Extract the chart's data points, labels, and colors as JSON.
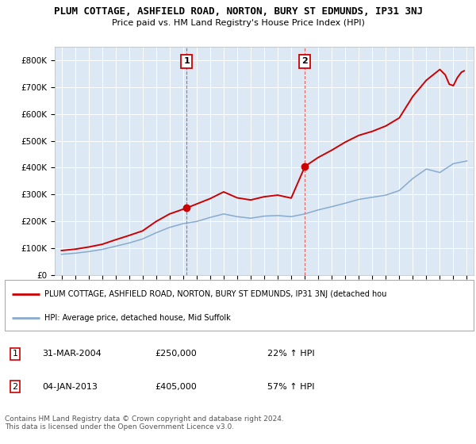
{
  "title": "PLUM COTTAGE, ASHFIELD ROAD, NORTON, BURY ST EDMUNDS, IP31 3NJ",
  "subtitle": "Price paid vs. HM Land Registry's House Price Index (HPI)",
  "plot_bg_color": "#dde8f5",
  "ylim": [
    0,
    850000
  ],
  "yticks": [
    0,
    100000,
    200000,
    300000,
    400000,
    500000,
    600000,
    700000,
    800000
  ],
  "ytick_labels": [
    "£0",
    "£100K",
    "£200K",
    "£300K",
    "£400K",
    "£500K",
    "£600K",
    "£700K",
    "£800K"
  ],
  "purchase1_year": 2004.25,
  "purchase1_value": 250000,
  "purchase2_year": 2013.02,
  "purchase2_value": 405000,
  "legend_line1": "PLUM COTTAGE, ASHFIELD ROAD, NORTON, BURY ST EDMUNDS, IP31 3NJ (detached hou",
  "legend_line2": "HPI: Average price, detached house, Mid Suffolk",
  "annotation1_label": "1",
  "annotation1_date": "31-MAR-2004",
  "annotation1_price": "£250,000",
  "annotation1_hpi": "22% ↑ HPI",
  "annotation2_label": "2",
  "annotation2_date": "04-JAN-2013",
  "annotation2_price": "£405,000",
  "annotation2_hpi": "57% ↑ HPI",
  "footer": "Contains HM Land Registry data © Crown copyright and database right 2024.\nThis data is licensed under the Open Government Licence v3.0.",
  "red_color": "#cc0000",
  "blue_color": "#88aacc",
  "marker_color": "#cc0000",
  "years_hpi": [
    1995,
    1996,
    1997,
    1998,
    1999,
    2000,
    2001,
    2002,
    2003,
    2004,
    2005,
    2006,
    2007,
    2008,
    2009,
    2010,
    2011,
    2012,
    2013,
    2014,
    2015,
    2016,
    2017,
    2018,
    2019,
    2020,
    2021,
    2022,
    2023,
    2024,
    2025
  ],
  "hpi_values": [
    78000,
    82000,
    88000,
    96000,
    108000,
    120000,
    135000,
    158000,
    178000,
    192000,
    200000,
    215000,
    228000,
    218000,
    212000,
    220000,
    222000,
    218000,
    228000,
    243000,
    255000,
    268000,
    282000,
    290000,
    298000,
    315000,
    360000,
    395000,
    382000,
    415000,
    425000
  ],
  "years_prop": [
    1995,
    1996,
    1997,
    1998,
    1999,
    2000,
    2001,
    2002,
    2003,
    2004.25,
    2005,
    2006,
    2007,
    2008,
    2009,
    2010,
    2011,
    2012,
    2013.02,
    2014,
    2015,
    2016,
    2017,
    2018,
    2019,
    2020,
    2021,
    2022,
    2023,
    2023.4,
    2023.7,
    2024.0,
    2024.3,
    2024.6,
    2024.8
  ],
  "prop_values": [
    92000,
    97000,
    105000,
    115000,
    132000,
    148000,
    165000,
    200000,
    228000,
    250000,
    265000,
    285000,
    310000,
    288000,
    280000,
    292000,
    298000,
    287000,
    405000,
    438000,
    465000,
    495000,
    520000,
    535000,
    555000,
    585000,
    665000,
    725000,
    765000,
    745000,
    710000,
    705000,
    735000,
    755000,
    760000
  ]
}
